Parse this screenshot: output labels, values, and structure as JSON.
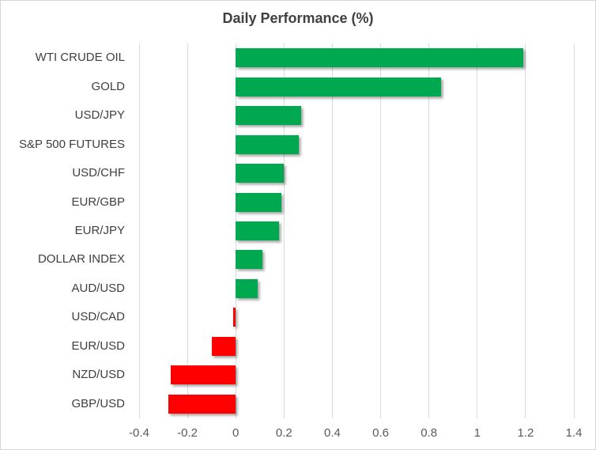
{
  "chart_data": {
    "type": "bar",
    "orientation": "horizontal",
    "title": "Daily Performance (%)",
    "categories": [
      "WTI CRUDE OIL",
      "GOLD",
      "USD/JPY",
      "S&P 500 FUTURES",
      "USD/CHF",
      "EUR/GBP",
      "EUR/JPY",
      "DOLLAR INDEX",
      "AUD/USD",
      "USD/CAD",
      "EUR/USD",
      "NZD/USD",
      "GBP/USD"
    ],
    "values": [
      1.19,
      0.85,
      0.27,
      0.26,
      0.2,
      0.19,
      0.18,
      0.11,
      0.09,
      -0.01,
      -0.1,
      -0.27,
      -0.28
    ],
    "xlim": [
      -0.4,
      1.4
    ],
    "xticks": [
      -0.4,
      -0.2,
      0,
      0.2,
      0.4,
      0.6,
      0.8,
      1,
      1.2,
      1.4
    ],
    "xtick_labels": [
      "-0.4",
      "-0.2",
      "0",
      "0.2",
      "0.4",
      "0.6",
      "0.8",
      "1",
      "1.2",
      "1.4"
    ],
    "grid": "vertical-gridlines-on",
    "legend": "none",
    "colors": {
      "positive": "#00a94f",
      "negative": "#fe0000",
      "gridline": "#d9d9d9",
      "title_text": "#404040",
      "axis_text": "#595959",
      "category_text": "#3f3f3f",
      "border": "#d7d7d7",
      "background": "#ffffff"
    }
  }
}
